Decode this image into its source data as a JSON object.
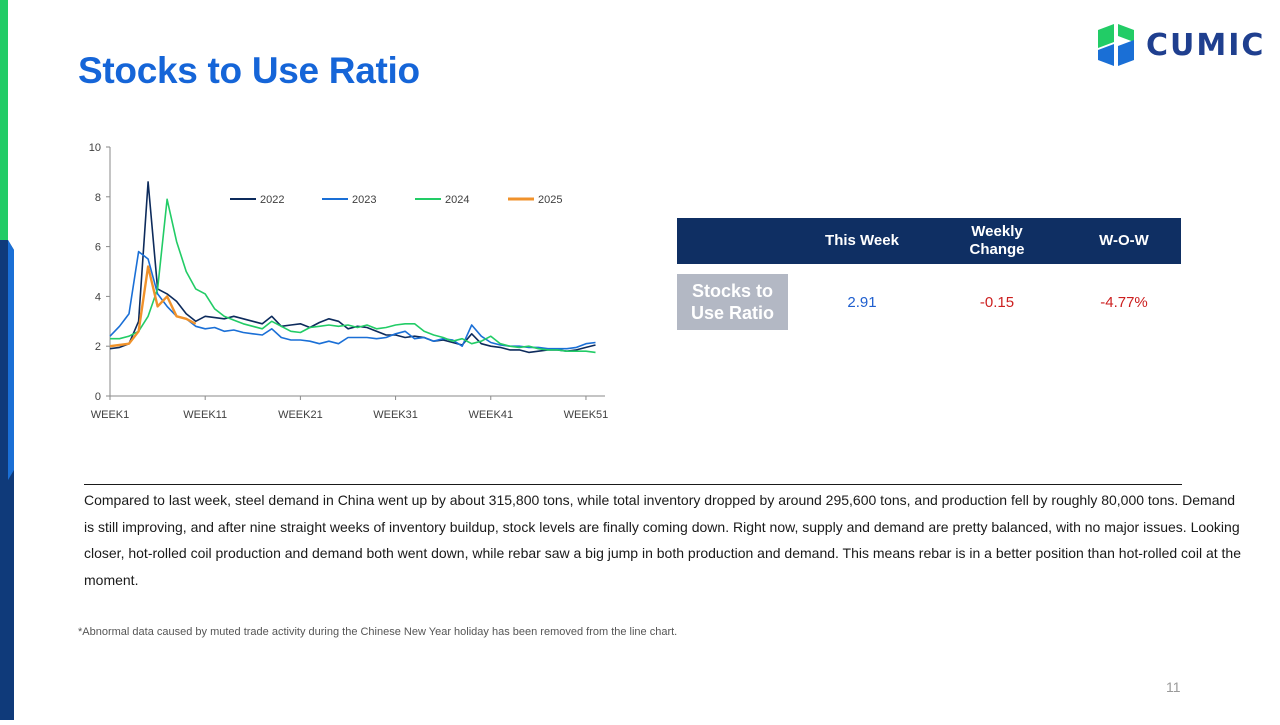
{
  "page": {
    "title": "Stocks to Use Ratio",
    "logo_text": "CUMIC",
    "page_number": "11",
    "footnote": "*Abnormal data caused by muted trade activity during the Chinese New Year holiday has been removed from the line chart.",
    "commentary": "Compared to last week, steel demand in China went up by about 315,800 tons, while total inventory dropped by around 295,600 tons, and production fell by roughly 80,000 tons. Demand is still improving, and after nine straight weeks of inventory buildup, stock levels are finally coming down. Right now, supply and demand are pretty balanced, with no major issues. Looking closer, hot-rolled coil production and demand both went down, while rebar saw a big jump in both production and demand. This means rebar is in a better position than hot-rolled coil at the moment."
  },
  "kpi_table": {
    "headers": [
      "",
      "This Week",
      "Weekly Change",
      "W-O-W"
    ],
    "row_label": "Stocks to Use Ratio",
    "this_week": "2.91",
    "weekly_change": "-0.15",
    "wow": "-4.77%"
  },
  "colors": {
    "title": "#1565d8",
    "header_bg": "#0f2f63",
    "negative": "#cc1f1f",
    "positive": "#1f5fcf",
    "row_label_bg": "#b3b8c4"
  },
  "chart_data": {
    "type": "line",
    "title": "",
    "xlabel": "",
    "ylabel": "",
    "ylim": [
      0,
      10
    ],
    "yticks": [
      0,
      2,
      4,
      6,
      8,
      10
    ],
    "xlim": [
      1,
      53
    ],
    "xticks": [
      1,
      11,
      21,
      31,
      41,
      51
    ],
    "xtick_labels": [
      "WEEK1",
      "WEEK11",
      "WEEK21",
      "WEEK31",
      "WEEK41",
      "WEEK51"
    ],
    "grid": false,
    "legend_position": "top-right",
    "series": [
      {
        "name": "2022",
        "color": "#0d2b5c",
        "x": [
          1,
          2,
          3,
          4,
          5,
          6,
          7,
          8,
          9,
          10,
          11,
          12,
          13,
          14,
          15,
          16,
          17,
          18,
          19,
          20,
          21,
          22,
          23,
          24,
          25,
          26,
          27,
          28,
          29,
          30,
          31,
          32,
          33,
          34,
          35,
          36,
          37,
          38,
          39,
          40,
          41,
          42,
          43,
          44,
          45,
          46,
          47,
          48,
          49,
          50,
          51,
          52
        ],
        "y": [
          1.9,
          1.95,
          2.1,
          3.0,
          8.6,
          4.3,
          4.1,
          3.8,
          3.3,
          3.0,
          3.2,
          3.15,
          3.1,
          3.2,
          3.1,
          3.0,
          2.9,
          3.2,
          2.8,
          2.85,
          2.9,
          2.75,
          2.95,
          3.1,
          3.0,
          2.7,
          2.8,
          2.75,
          2.6,
          2.45,
          2.45,
          2.35,
          2.4,
          2.35,
          2.2,
          2.25,
          2.15,
          2.05,
          2.5,
          2.1,
          2.0,
          1.95,
          1.85,
          1.85,
          1.75,
          1.8,
          1.85,
          1.85,
          1.8,
          1.85,
          1.95,
          2.05
        ]
      },
      {
        "name": "2023",
        "color": "#1a6fd6",
        "x": [
          1,
          2,
          3,
          4,
          5,
          6,
          7,
          8,
          9,
          10,
          11,
          12,
          13,
          14,
          15,
          16,
          17,
          18,
          19,
          20,
          21,
          22,
          23,
          24,
          25,
          26,
          27,
          28,
          29,
          30,
          31,
          32,
          33,
          34,
          35,
          36,
          37,
          38,
          39,
          40,
          41,
          42,
          43,
          44,
          45,
          46,
          47,
          48,
          49,
          50,
          51,
          52
        ],
        "y": [
          2.4,
          2.8,
          3.3,
          5.8,
          5.5,
          4.1,
          3.6,
          3.2,
          3.1,
          2.8,
          2.7,
          2.75,
          2.6,
          2.65,
          2.55,
          2.5,
          2.45,
          2.7,
          2.35,
          2.25,
          2.25,
          2.2,
          2.1,
          2.2,
          2.1,
          2.35,
          2.35,
          2.35,
          2.3,
          2.35,
          2.5,
          2.6,
          2.3,
          2.35,
          2.2,
          2.3,
          2.25,
          2.0,
          2.85,
          2.4,
          2.15,
          2.05,
          2.0,
          2.0,
          1.95,
          1.95,
          1.9,
          1.9,
          1.9,
          1.95,
          2.1,
          2.15
        ]
      },
      {
        "name": "2024",
        "color": "#22cc66",
        "x": [
          1,
          2,
          3,
          4,
          5,
          6,
          7,
          8,
          9,
          10,
          11,
          12,
          13,
          14,
          15,
          16,
          17,
          18,
          19,
          20,
          21,
          22,
          23,
          24,
          25,
          26,
          27,
          28,
          29,
          30,
          31,
          32,
          33,
          34,
          35,
          36,
          37,
          38,
          39,
          40,
          41,
          42,
          43,
          44,
          45,
          46,
          47,
          48,
          49,
          50,
          51,
          52
        ],
        "y": [
          2.3,
          2.3,
          2.4,
          2.6,
          3.2,
          4.3,
          7.9,
          6.2,
          5.0,
          4.3,
          4.1,
          3.5,
          3.2,
          3.05,
          2.9,
          2.8,
          2.7,
          3.0,
          2.8,
          2.6,
          2.55,
          2.75,
          2.8,
          2.85,
          2.8,
          2.85,
          2.75,
          2.85,
          2.7,
          2.75,
          2.85,
          2.9,
          2.9,
          2.6,
          2.45,
          2.35,
          2.2,
          2.3,
          2.1,
          2.2,
          2.4,
          2.1,
          2.0,
          1.95,
          2.0,
          1.9,
          1.85,
          1.85,
          1.8,
          1.8,
          1.8,
          1.75
        ]
      },
      {
        "name": "2025",
        "color": "#f0922b",
        "x": [
          1,
          2,
          3,
          4,
          5,
          6,
          7,
          8,
          9,
          10
        ],
        "y": [
          2.0,
          2.05,
          2.1,
          2.6,
          5.2,
          3.6,
          4.0,
          3.2,
          3.1,
          2.9
        ]
      }
    ]
  }
}
